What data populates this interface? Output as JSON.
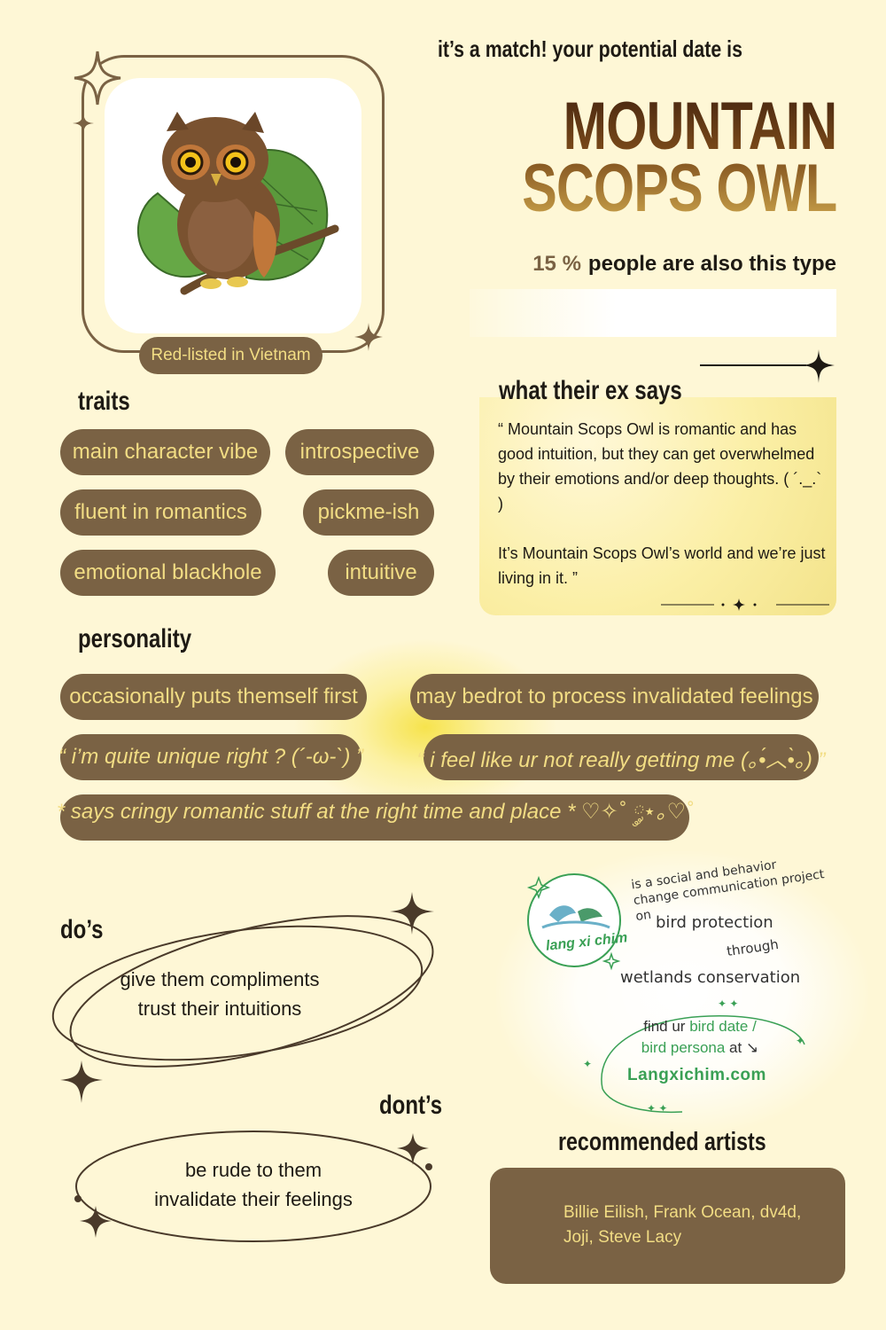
{
  "header": {
    "headline": "it’s a match! your potential date is",
    "species_line1": "MOUNTAIN",
    "species_line2": "SCOPS OWL",
    "stat_percent": "15 %",
    "stat_text": "people are also this type"
  },
  "owl_card": {
    "badge": "Red-listed in Vietnam"
  },
  "traits": {
    "title": "traits",
    "items": [
      "main character vibe",
      "introspective",
      "fluent in romantics",
      "pickme-ish",
      "emotional blackhole",
      "intuitive"
    ]
  },
  "ex_says": {
    "title": "what their ex says",
    "paragraph1": "“  Mountain Scops Owl is romantic and has good intuition, but they can get overwhelmed by their emotions and/or deep thoughts.    ( ´._.` )",
    "paragraph2": "It’s Mountain Scops Owl’s world and we’re just living in it.   ”"
  },
  "personality": {
    "title": "personality",
    "items": [
      "occasionally puts themself first",
      "may bedrot to process invalidated feelings",
      "“ i’m quite unique right ? (´-ω-`) ”",
      "“ i feel like ur not really getting me  (｡•́︿•̀｡) ”",
      "* says cringy romantic stuff at the right time and place *  ♡✧˚ ༘⋆｡♡˚"
    ]
  },
  "dos": {
    "title": "do’s",
    "line1": "give them compliments",
    "line2": "trust their intuitions"
  },
  "donts": {
    "title": "dont’s",
    "line1": "be rude to them",
    "line2": "invalidate their feelings"
  },
  "project": {
    "logo_text": "lang xi chim",
    "arc_text": "is a social and behavior change communication project on",
    "line_bird": "bird protection",
    "line_through": "through",
    "line_wetlands": "wetlands conservation",
    "find_prefix": "find ur ",
    "find_link1": "bird date /",
    "find_link2": "bird persona",
    "find_suffix": " at ↘",
    "url": "Langxichim.com"
  },
  "artists": {
    "title": "recommended artists",
    "line1": "Billie Eilish, Frank Ocean, dv4d,",
    "line2": "Joji, Steve Lacy"
  },
  "colors": {
    "background": "#fef7d6",
    "pill": "#7a6244",
    "pill_text": "#f2dd84",
    "accent_green": "#3aa055"
  }
}
